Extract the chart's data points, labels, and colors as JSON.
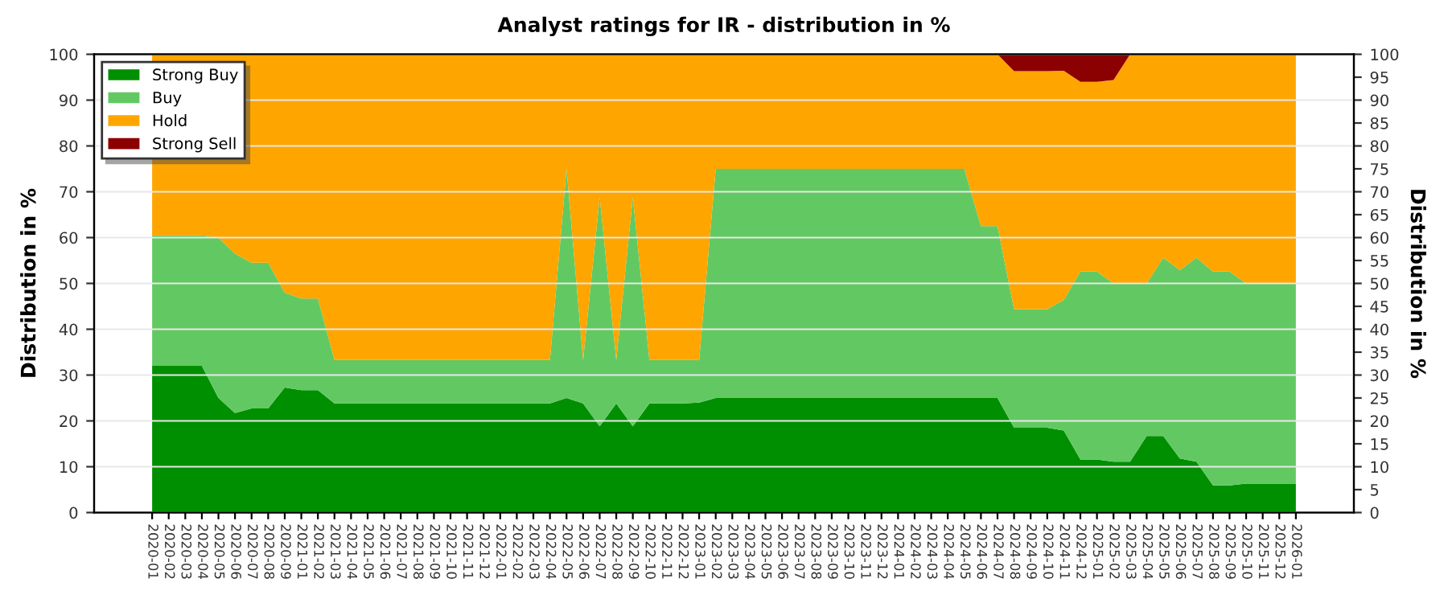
{
  "chart_data": {
    "type": "area",
    "stacked": true,
    "title": "Analyst ratings for IR - distribution in %",
    "ylabel": "Distribution in %",
    "y2label": "Distribution in %",
    "categories": [
      "2020-01",
      "2020-02",
      "2020-03",
      "2020-04",
      "2020-05",
      "2020-06",
      "2020-07",
      "2020-08",
      "2020-09",
      "2021-01",
      "2021-02",
      "2021-03",
      "2021-04",
      "2021-05",
      "2021-06",
      "2021-07",
      "2021-08",
      "2021-09",
      "2021-10",
      "2021-11",
      "2021-12",
      "2022-01",
      "2022-02",
      "2022-03",
      "2022-04",
      "2022-05",
      "2022-06",
      "2022-07",
      "2022-08",
      "2022-09",
      "2022-10",
      "2022-11",
      "2022-12",
      "2023-01",
      "2023-02",
      "2023-03",
      "2023-04",
      "2023-05",
      "2023-06",
      "2023-07",
      "2023-08",
      "2023-09",
      "2023-10",
      "2023-11",
      "2023-12",
      "2024-01",
      "2024-02",
      "2024-03",
      "2024-04",
      "2024-05",
      "2024-06",
      "2024-07",
      "2024-08",
      "2024-09",
      "2024-10",
      "2024-11",
      "2024-12",
      "2025-01",
      "2025-02",
      "2025-03",
      "2025-04",
      "2025-05",
      "2025-06",
      "2025-07",
      "2025-08",
      "2025-09",
      "2025-10",
      "2025-11",
      "2025-12",
      "2026-01"
    ],
    "series": [
      {
        "name": "Strong Buy",
        "color": "#008f00",
        "values": [
          32,
          32,
          32,
          32,
          25,
          21.7,
          22.7,
          22.7,
          27.3,
          26.7,
          26.7,
          23.8,
          23.8,
          23.8,
          23.8,
          23.8,
          23.8,
          23.8,
          23.8,
          23.8,
          23.8,
          23.8,
          23.8,
          23.8,
          23.8,
          25,
          23.8,
          18.8,
          23.8,
          18.8,
          23.8,
          23.8,
          23.8,
          24,
          25,
          25,
          25,
          25,
          25,
          25,
          25,
          25,
          25,
          25,
          25,
          25,
          25,
          25,
          25,
          25,
          25,
          25,
          18.5,
          18.5,
          18.5,
          17.9,
          11.6,
          11.6,
          11.1,
          11.1,
          16.7,
          16.7,
          11.8,
          11.1,
          5.9,
          5.9,
          6.3,
          6.3,
          6.3,
          6.3
        ]
      },
      {
        "name": "Buy",
        "color": "#62c962",
        "values": [
          28.5,
          28.5,
          28.5,
          28.5,
          35,
          34.8,
          31.8,
          31.8,
          20.7,
          20,
          20,
          9.5,
          9.5,
          9.5,
          9.5,
          9.5,
          9.5,
          9.5,
          9.5,
          9.5,
          9.5,
          9.5,
          9.5,
          9.5,
          9.5,
          50,
          9.5,
          50,
          9.5,
          50,
          9.5,
          9.5,
          9.5,
          9.3,
          50,
          50,
          50,
          50,
          50,
          50,
          50,
          50,
          50,
          50,
          50,
          50,
          50,
          50,
          50,
          50,
          37.5,
          37.5,
          25.9,
          25.9,
          25.9,
          28.5,
          41,
          41,
          38.9,
          38.9,
          33.3,
          38.9,
          41.1,
          44.5,
          46.7,
          46.7,
          43.7,
          43.7,
          43.7,
          43.7
        ]
      },
      {
        "name": "Hold",
        "color": "#ffa500",
        "values": [
          39.5,
          39.5,
          39.5,
          39.5,
          40,
          43.5,
          45.5,
          45.5,
          52,
          53.3,
          53.3,
          66.7,
          66.7,
          66.7,
          66.7,
          66.7,
          66.7,
          66.7,
          66.7,
          66.7,
          66.7,
          66.7,
          66.7,
          66.7,
          66.7,
          25,
          66.7,
          31.2,
          66.7,
          31.2,
          66.7,
          66.7,
          66.7,
          66.7,
          25,
          25,
          25,
          25,
          25,
          25,
          25,
          25,
          25,
          25,
          25,
          25,
          25,
          25,
          25,
          25,
          37.5,
          37.5,
          51.9,
          51.9,
          51.9,
          50,
          41.4,
          41.4,
          44.4,
          50,
          50,
          44.4,
          47.1,
          44.4,
          47.4,
          47.4,
          50,
          50,
          50,
          50
        ]
      },
      {
        "name": "Strong Sell",
        "color": "#8b0000",
        "values": [
          0,
          0,
          0,
          0,
          0,
          0,
          0,
          0,
          0,
          0,
          0,
          0,
          0,
          0,
          0,
          0,
          0,
          0,
          0,
          0,
          0,
          0,
          0,
          0,
          0,
          0,
          0,
          0,
          0,
          0,
          0,
          0,
          0,
          0,
          0,
          0,
          0,
          0,
          0,
          0,
          0,
          0,
          0,
          0,
          0,
          0,
          0,
          0,
          0,
          0,
          0,
          0,
          3.7,
          3.7,
          3.7,
          3.6,
          6,
          6,
          5.6,
          0,
          0,
          0,
          0,
          0,
          0,
          0,
          0,
          0,
          0,
          0
        ]
      }
    ],
    "ylim": [
      0,
      100
    ],
    "yticks": [
      0,
      10,
      20,
      30,
      40,
      50,
      60,
      70,
      80,
      90,
      100
    ],
    "y2lim": [
      0,
      100
    ],
    "y2ticks": [
      0,
      5,
      10,
      15,
      20,
      25,
      30,
      35,
      40,
      45,
      50,
      55,
      60,
      65,
      70,
      75,
      80,
      85,
      90,
      95,
      100
    ],
    "grid": "y",
    "legend": "top left"
  }
}
